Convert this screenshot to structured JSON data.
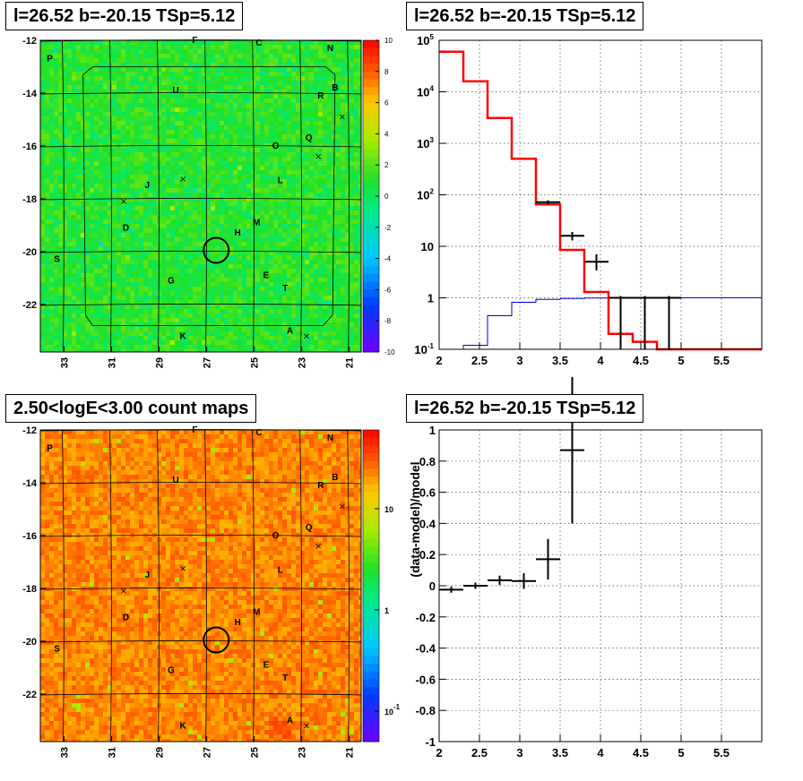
{
  "panels": {
    "top_left_title": "l=26.52 b=-20.15 TSp=5.12",
    "top_right_title": "l=26.52 b=-20.15 TSp=5.12",
    "bottom_left_title": "2.50<logE<3.00 count maps",
    "bottom_right_title": "l=26.52 b=-20.15 TSp=5.12"
  },
  "colors": {
    "data_marks": "#000000",
    "model_total": "#ff0000",
    "model_source": "#0000cc",
    "circle": "#000000"
  },
  "chart_data": [
    {
      "type": "heatmap",
      "id": "residual_map",
      "x_ticks": [
        "33",
        "31",
        "29",
        "27",
        "25",
        "23",
        "21"
      ],
      "y_ticks": [
        "-12",
        "-14",
        "-16",
        "-18",
        "-20",
        "-22"
      ],
      "xlim": [
        34,
        20.5
      ],
      "ylim": [
        -23.8,
        -12
      ],
      "grid": true,
      "colorbar": {
        "min": -10,
        "max": 10,
        "ticks": [
          "10",
          "8",
          "6",
          "4",
          "2",
          "0",
          "-2",
          "-4",
          "-6",
          "-8",
          "-10"
        ]
      },
      "source_labels": [
        {
          "text": "P",
          "x": 33.6,
          "y": -12.8
        },
        {
          "text": "F",
          "x": 27.5,
          "y": -12.1
        },
        {
          "text": "C",
          "x": 24.8,
          "y": -12.2
        },
        {
          "text": "N",
          "x": 21.8,
          "y": -12.4
        },
        {
          "text": "B",
          "x": 21.6,
          "y": -13.9
        },
        {
          "text": "R",
          "x": 22.2,
          "y": -14.2
        },
        {
          "text": "U",
          "x": 28.3,
          "y": -14.0
        },
        {
          "text": "Q",
          "x": 22.7,
          "y": -15.8
        },
        {
          "text": "O",
          "x": 24.1,
          "y": -16.1
        },
        {
          "text": "L",
          "x": 23.9,
          "y": -17.4
        },
        {
          "text": "J",
          "x": 29.5,
          "y": -17.6
        },
        {
          "text": "M",
          "x": 24.9,
          "y": -19.0
        },
        {
          "text": "H",
          "x": 25.7,
          "y": -19.4
        },
        {
          "text": "D",
          "x": 30.4,
          "y": -19.2
        },
        {
          "text": "S",
          "x": 33.3,
          "y": -20.4
        },
        {
          "text": "G",
          "x": 28.5,
          "y": -21.2
        },
        {
          "text": "E",
          "x": 24.5,
          "y": -21.0
        },
        {
          "text": "T",
          "x": 23.7,
          "y": -21.5
        },
        {
          "text": "A",
          "x": 23.5,
          "y": -23.1
        },
        {
          "text": "K",
          "x": 28.0,
          "y": -23.3
        }
      ],
      "crosses": [
        {
          "x": 28.0,
          "y": -17.25
        },
        {
          "x": 30.5,
          "y": -18.1
        },
        {
          "x": 22.3,
          "y": -16.4
        },
        {
          "x": 22.8,
          "y": -23.2
        },
        {
          "x": 21.3,
          "y": -14.9
        }
      ],
      "circle": {
        "x": 26.6,
        "y": -19.95,
        "r": 0.5
      }
    },
    {
      "type": "line",
      "id": "spectrum",
      "xlim": [
        2,
        6
      ],
      "ylog": true,
      "ylim": [
        0.1,
        100000
      ],
      "x_ticks": [
        "2",
        "2.5",
        "3",
        "3.5",
        "4",
        "4.5",
        "5",
        "5.5"
      ],
      "y_ticks": [
        "10^-1",
        "1",
        "10",
        "10^2",
        "10^3",
        "10^4",
        "10^5"
      ],
      "grid": true,
      "series": [
        {
          "role": "total_model",
          "bins": [
            [
              2.0,
              2.3,
              60000
            ],
            [
              2.3,
              2.6,
              16000
            ],
            [
              2.6,
              2.9,
              3100
            ],
            [
              2.9,
              3.2,
              500
            ],
            [
              3.2,
              3.5,
              65
            ],
            [
              3.5,
              3.8,
              8.5
            ],
            [
              3.8,
              4.1,
              1.3
            ],
            [
              4.1,
              4.4,
              0.2
            ],
            [
              4.4,
              4.7,
              0.14
            ],
            [
              4.7,
              5.0,
              0.1
            ],
            [
              5.0,
              6.0,
              0.1
            ]
          ]
        },
        {
          "role": "source_model",
          "bins": [
            [
              2.0,
              2.3,
              0.09
            ],
            [
              2.3,
              2.6,
              0.12
            ],
            [
              2.6,
              2.9,
              0.45
            ],
            [
              2.9,
              3.2,
              0.82
            ],
            [
              3.2,
              3.5,
              0.93
            ],
            [
              3.5,
              3.8,
              0.97
            ],
            [
              3.8,
              4.1,
              0.99
            ],
            [
              4.1,
              6.0,
              1.0
            ]
          ]
        },
        {
          "role": "data",
          "points": [
            [
              3.35,
              72,
              0.15,
              6,
              6
            ],
            [
              3.65,
              16,
              0.15,
              3,
              3
            ],
            [
              3.95,
              5,
              0.15,
              1.6,
              2
            ],
            [
              4.25,
              1,
              0.15,
              0.9,
              0
            ],
            [
              4.55,
              1,
              0.15,
              0.9,
              0
            ],
            [
              4.85,
              1,
              0.15,
              0.9,
              0
            ]
          ]
        }
      ]
    },
    {
      "type": "heatmap",
      "id": "count_map",
      "title": "2.50<logE<3.00 count maps",
      "x_ticks": [
        "33",
        "31",
        "29",
        "27",
        "25",
        "23",
        "21"
      ],
      "y_ticks": [
        "-12",
        "-14",
        "-16",
        "-18",
        "-20",
        "-22"
      ],
      "xlim": [
        34,
        20.5
      ],
      "ylim": [
        -23.8,
        -12
      ],
      "grid": true,
      "colorbar": {
        "scale": "log",
        "min": 0.05,
        "max": 60,
        "ticks": [
          "10",
          "1",
          "10^-1"
        ]
      },
      "hotspots": [
        {
          "x": 24.0,
          "y": -23.3,
          "strength": 1.0
        },
        {
          "x": 33.2,
          "y": -12.5,
          "strength": 0.5
        }
      ]
    },
    {
      "type": "scatter",
      "id": "residuals",
      "xlim": [
        2,
        6
      ],
      "ylim": [
        -1,
        1
      ],
      "ylabel": "(data-model)/model",
      "x_ticks": [
        "2",
        "2.5",
        "3",
        "3.5",
        "4",
        "4.5",
        "5",
        "5.5"
      ],
      "y_ticks": [
        "-1",
        "-0.8",
        "-0.6",
        "-0.4",
        "-0.2",
        "0",
        "0.2",
        "0.4",
        "0.6",
        "0.8",
        "1"
      ],
      "grid": true,
      "points": [
        [
          2.15,
          -0.025,
          0.15,
          0.02
        ],
        [
          2.45,
          0.0,
          0.15,
          0.02
        ],
        [
          2.75,
          0.035,
          0.15,
          0.03
        ],
        [
          3.05,
          0.03,
          0.15,
          0.05
        ],
        [
          3.35,
          0.17,
          0.15,
          0.13
        ],
        [
          3.65,
          0.87,
          0.15,
          0.47
        ]
      ]
    }
  ]
}
